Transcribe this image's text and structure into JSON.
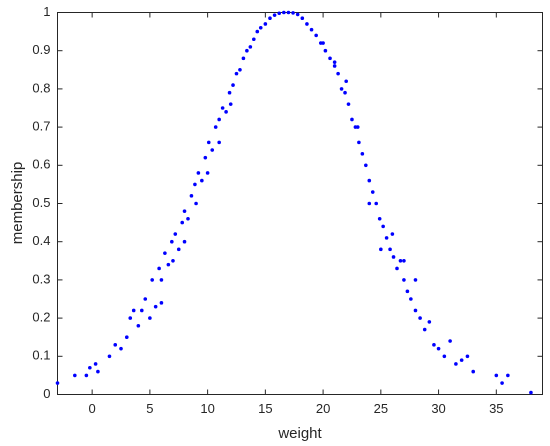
{
  "chart_data": {
    "type": "scatter",
    "xlabel": "weight",
    "ylabel": "membership",
    "xlim": [
      -3,
      39
    ],
    "ylim": [
      0,
      1
    ],
    "xticks": [
      0,
      5,
      10,
      15,
      20,
      25,
      30,
      35
    ],
    "yticks": [
      0,
      0.1,
      0.2,
      0.3,
      0.4,
      0.5,
      0.6,
      0.7,
      0.8,
      0.9,
      1
    ],
    "color": "#0000ff",
    "x": [
      -3,
      -1.5,
      -0.5,
      -0.2,
      0.3,
      0.5,
      1.5,
      2,
      2.5,
      3,
      3.3,
      3.6,
      4,
      4.3,
      4.6,
      5,
      5.2,
      5.5,
      5.8,
      6,
      6.3,
      6.6,
      6.9,
      7.2,
      7.5,
      7.8,
      8,
      8.3,
      8.6,
      8.9,
      9.2,
      9.5,
      9.8,
      10.1,
      10.4,
      10.7,
      11,
      11.3,
      11.6,
      11.9,
      12.2,
      12.5,
      12.8,
      13.1,
      13.4,
      13.7,
      14,
      14.3,
      14.6,
      15,
      15.4,
      15.8,
      16.2,
      16.6,
      17,
      17.4,
      17.8,
      18.2,
      18.6,
      19,
      19.4,
      19.8,
      20.2,
      20.6,
      21,
      21.3,
      21.6,
      21.9,
      22.2,
      22.5,
      22.8,
      23.1,
      23.4,
      23.7,
      24,
      24.3,
      24.6,
      24.9,
      25.2,
      25.5,
      25.8,
      26.1,
      26.4,
      26.7,
      27,
      27.3,
      27.6,
      28,
      28.4,
      28.8,
      29.2,
      29.6,
      30,
      30.5,
      31,
      31.5,
      32,
      32.5,
      33,
      35,
      35.5,
      36,
      38,
      8,
      9,
      10,
      11,
      12,
      7,
      6,
      22,
      23,
      24,
      25,
      26,
      27,
      28,
      21,
      20
    ],
    "y": [
      0.03,
      0.05,
      0.05,
      0.07,
      0.08,
      0.06,
      0.1,
      0.13,
      0.12,
      0.15,
      0.2,
      0.22,
      0.18,
      0.22,
      0.25,
      0.2,
      0.3,
      0.23,
      0.33,
      0.3,
      0.37,
      0.34,
      0.4,
      0.42,
      0.38,
      0.45,
      0.48,
      0.46,
      0.52,
      0.55,
      0.58,
      0.56,
      0.62,
      0.66,
      0.64,
      0.7,
      0.72,
      0.75,
      0.74,
      0.79,
      0.81,
      0.84,
      0.85,
      0.88,
      0.9,
      0.91,
      0.93,
      0.95,
      0.96,
      0.97,
      0.985,
      0.993,
      0.998,
      1,
      1,
      0.999,
      0.995,
      0.985,
      0.97,
      0.955,
      0.94,
      0.92,
      0.9,
      0.88,
      0.86,
      0.84,
      0.8,
      0.79,
      0.76,
      0.72,
      0.7,
      0.66,
      0.63,
      0.6,
      0.56,
      0.53,
      0.5,
      0.46,
      0.44,
      0.41,
      0.38,
      0.36,
      0.33,
      0.35,
      0.3,
      0.27,
      0.25,
      0.22,
      0.2,
      0.17,
      0.19,
      0.13,
      0.12,
      0.1,
      0.14,
      0.08,
      0.09,
      0.1,
      0.06,
      0.05,
      0.03,
      0.05,
      0.005,
      0.4,
      0.5,
      0.58,
      0.66,
      0.76,
      0.35,
      0.24,
      0.82,
      0.7,
      0.5,
      0.38,
      0.42,
      0.35,
      0.3,
      0.87,
      0.92
    ]
  }
}
